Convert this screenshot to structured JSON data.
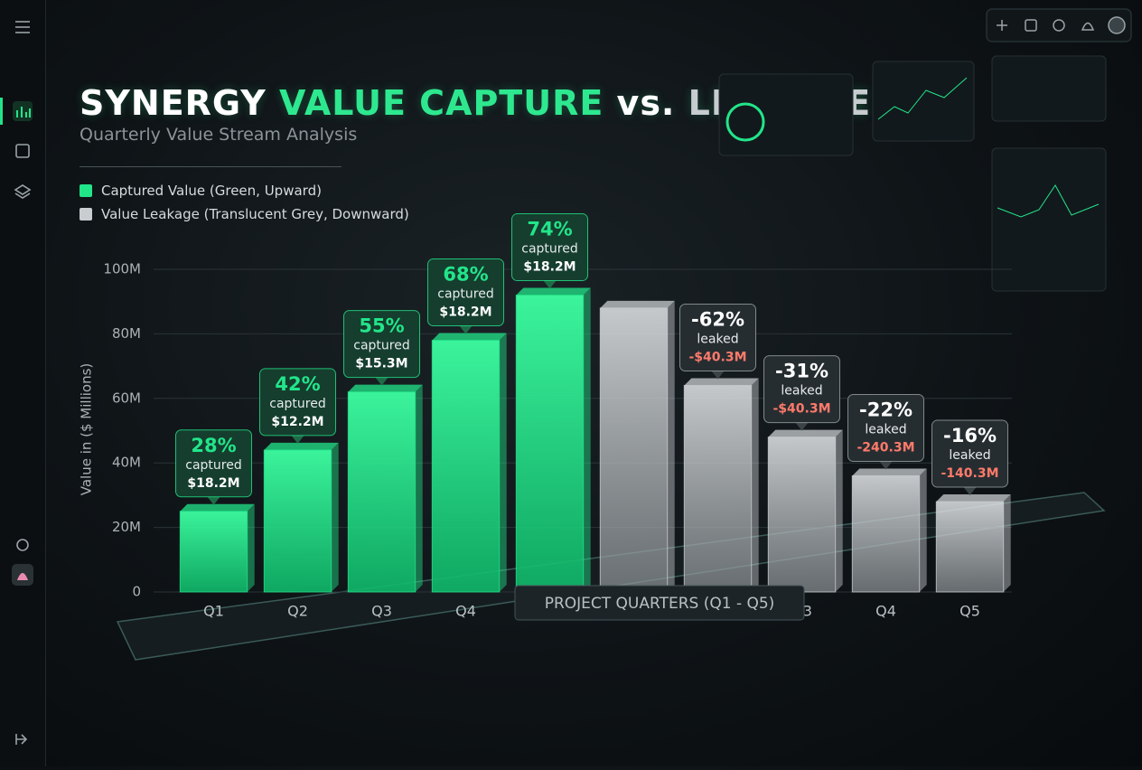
{
  "chart_data": {
    "type": "bar",
    "title_parts": [
      {
        "text": "SYNERGY",
        "color": "#ffffff"
      },
      {
        "text": "VALUE CAPTURE",
        "color": "#2ee88f"
      },
      {
        "text": "vs.",
        "color": "#ffffff"
      },
      {
        "text": "LEAKAGE",
        "color": "#c7ccd0"
      }
    ],
    "subtitle": "Quarterly Value Stream Analysis",
    "y_label": "Value in ($ Millions)",
    "x_label": "PROJECT QUARTERS (Q1 - Q5)",
    "categories": [
      "Q1",
      "Q2",
      "Q3",
      "Q4",
      "Q5"
    ],
    "series": [
      {
        "name": "Captured Value (Green, Upward)",
        "color": "#22e58a",
        "values": [
          25,
          44,
          62,
          78,
          92
        ],
        "callouts": [
          {
            "percent": "28%",
            "word": "captured",
            "amount": "$18.2M"
          },
          {
            "percent": "42%",
            "word": "captured",
            "amount": "$12.2M"
          },
          {
            "percent": "55%",
            "word": "captured",
            "amount": "$15.3M"
          },
          {
            "percent": "68%",
            "word": "captured",
            "amount": "$18.2M"
          },
          {
            "percent": "74%",
            "word": "captured",
            "amount": "$18.2M"
          }
        ]
      },
      {
        "name": "Value Leakage (Translucent Grey, Downward)",
        "color": "#c9cdd0",
        "values": [
          88,
          64,
          48,
          36,
          28
        ],
        "callouts": [
          null,
          {
            "percent": "-62%",
            "word": "leaked",
            "amount": "-$40.3M"
          },
          {
            "percent": "-31%",
            "word": "leaked",
            "amount": "-$40.3M"
          },
          {
            "percent": "-22%",
            "word": "leaked",
            "amount": "-240.3M"
          },
          {
            "percent": "-16%",
            "word": "leaked",
            "amount": "-140.3M"
          }
        ]
      }
    ],
    "leak_amount_color": "#ff7a6b",
    "ylim": [
      0,
      100
    ],
    "yticks": [
      0,
      {
        "value": 20,
        "label": "20M"
      },
      {
        "value": 40,
        "label": "40M"
      },
      {
        "value": 60,
        "label": "60M"
      },
      {
        "value": 80,
        "label": "80M"
      },
      {
        "value": 100,
        "label": "100M"
      }
    ],
    "grid": true
  }
}
